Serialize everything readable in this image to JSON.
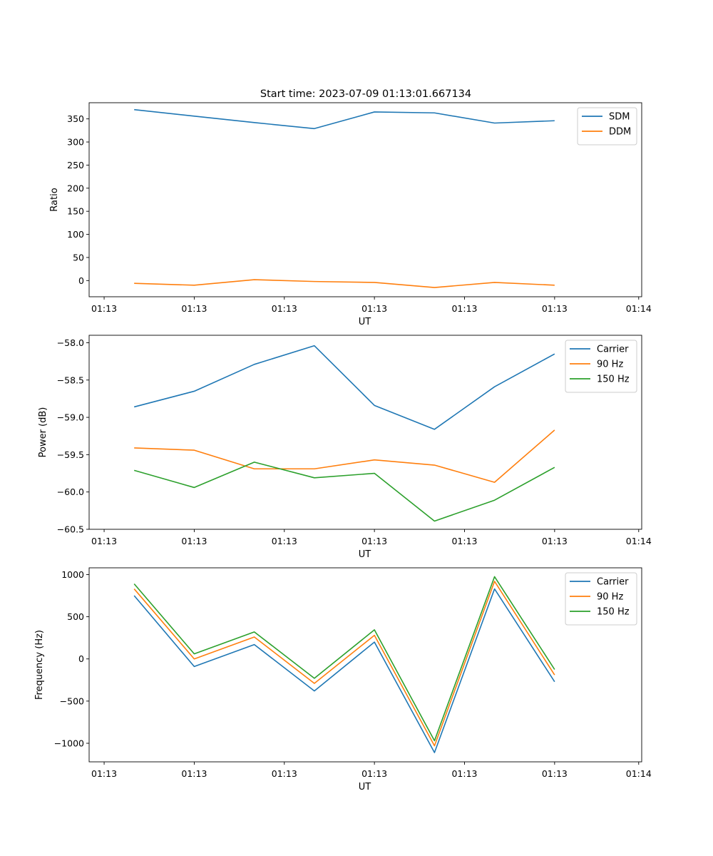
{
  "figure_title": "Start time: 2023-07-09 01:13:01.667134",
  "chart_data": [
    {
      "type": "line",
      "title": "Start time: 2023-07-09 01:13:01.667134",
      "xlabel": "UT",
      "ylabel": "Ratio",
      "x_ticks": [
        "01:13",
        "01:13",
        "01:13",
        "01:13",
        "01:13",
        "01:13",
        "01:14"
      ],
      "x": [
        1,
        2,
        3,
        4,
        5,
        6,
        7,
        8
      ],
      "xlim": [
        0.25,
        9.45
      ],
      "ylim": [
        -35,
        385
      ],
      "y_ticks": [
        0,
        50,
        100,
        150,
        200,
        250,
        300,
        350
      ],
      "y_tick_labels": [
        "0",
        "50",
        "100",
        "150",
        "200",
        "250",
        "300",
        "350"
      ],
      "legend": "top-right",
      "series": [
        {
          "name": "SDM",
          "color": "#1f77b4",
          "values": [
            370,
            356,
            342,
            329,
            365,
            363,
            341,
            346
          ]
        },
        {
          "name": "DDM",
          "color": "#ff7f0e",
          "values": [
            -6,
            -10,
            2,
            -2,
            -4,
            -15,
            -4,
            -10
          ]
        }
      ]
    },
    {
      "type": "line",
      "xlabel": "UT",
      "ylabel": "Power (dB)",
      "x_ticks": [
        "01:13",
        "01:13",
        "01:13",
        "01:13",
        "01:13",
        "01:13",
        "01:14"
      ],
      "x": [
        1,
        2,
        3,
        4,
        5,
        6,
        7,
        8
      ],
      "xlim": [
        0.25,
        9.45
      ],
      "ylim": [
        -60.5,
        -57.9
      ],
      "y_ticks": [
        -58.0,
        -58.5,
        -59.0,
        -59.5,
        -60.0,
        -60.5
      ],
      "y_tick_labels": [
        "−58.0",
        "−58.5",
        "−59.0",
        "−59.5",
        "−60.0",
        "−60.5"
      ],
      "legend": "top-right",
      "series": [
        {
          "name": "Carrier",
          "color": "#1f77b4",
          "values": [
            -58.86,
            -58.65,
            -58.29,
            -58.04,
            -58.84,
            -59.16,
            -58.59,
            -58.15
          ]
        },
        {
          "name": "90 Hz",
          "color": "#ff7f0e",
          "values": [
            -59.41,
            -59.44,
            -59.69,
            -59.69,
            -59.57,
            -59.64,
            -59.87,
            -59.17
          ]
        },
        {
          "name": "150 Hz",
          "color": "#2ca02c",
          "values": [
            -59.71,
            -59.94,
            -59.6,
            -59.81,
            -59.75,
            -60.39,
            -60.11,
            -59.67
          ]
        }
      ]
    },
    {
      "type": "line",
      "xlabel": "UT",
      "ylabel": "Frequency (Hz)",
      "x_ticks": [
        "01:13",
        "01:13",
        "01:13",
        "01:13",
        "01:13",
        "01:13",
        "01:14"
      ],
      "x": [
        1,
        2,
        3,
        4,
        5,
        6,
        7,
        8
      ],
      "xlim": [
        0.25,
        9.45
      ],
      "ylim": [
        -1220,
        1080
      ],
      "y_ticks": [
        1000,
        500,
        0,
        -500,
        -1000
      ],
      "y_tick_labels": [
        "1000",
        "500",
        "0",
        "−500",
        "−1000"
      ],
      "legend": "top-right",
      "series": [
        {
          "name": "Carrier",
          "color": "#1f77b4",
          "values": [
            750,
            -90,
            170,
            -380,
            200,
            -1110,
            830,
            -270
          ]
        },
        {
          "name": "90 Hz",
          "color": "#ff7f0e",
          "values": [
            830,
            0,
            260,
            -290,
            280,
            -1030,
            920,
            -190
          ]
        },
        {
          "name": "150 Hz",
          "color": "#2ca02c",
          "values": [
            890,
            60,
            320,
            -230,
            345,
            -970,
            975,
            -125
          ]
        }
      ]
    }
  ]
}
